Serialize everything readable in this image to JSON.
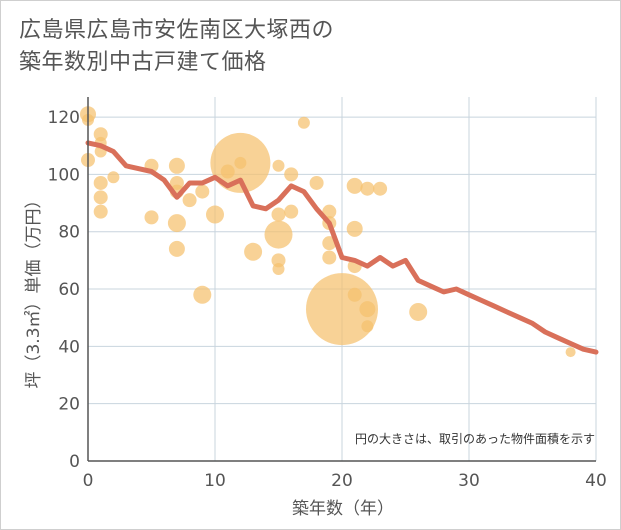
{
  "title_lines": [
    "広島県広島市安佐南区大塚西の",
    "築年数別中古戸建て価格"
  ],
  "chart_data": {
    "type": "scatter",
    "xlabel": "築年数（年）",
    "ylabel": "坪（3.3㎡）単価（万円）",
    "xlim": [
      0,
      40
    ],
    "ylim": [
      0,
      127
    ],
    "x_ticks": [
      "0",
      "10",
      "20",
      "30",
      "40"
    ],
    "y_ticks": [
      "0",
      "20",
      "40",
      "60",
      "80",
      "100",
      "120"
    ],
    "grid": true,
    "note": "円の大きさは、取引のあった物件面積を示す",
    "colors": {
      "bubble": "#f5c16e",
      "line": "#d9705a"
    },
    "points": [
      {
        "x": 0,
        "y": 121,
        "r": 8
      },
      {
        "x": 0,
        "y": 119,
        "r": 6
      },
      {
        "x": 0,
        "y": 105,
        "r": 7
      },
      {
        "x": 1,
        "y": 114,
        "r": 7
      },
      {
        "x": 1,
        "y": 111,
        "r": 6
      },
      {
        "x": 1,
        "y": 108,
        "r": 6
      },
      {
        "x": 1,
        "y": 97,
        "r": 7
      },
      {
        "x": 1,
        "y": 92,
        "r": 7
      },
      {
        "x": 1,
        "y": 87,
        "r": 7
      },
      {
        "x": 2,
        "y": 99,
        "r": 6
      },
      {
        "x": 5,
        "y": 103,
        "r": 7
      },
      {
        "x": 5,
        "y": 85,
        "r": 7
      },
      {
        "x": 7,
        "y": 103,
        "r": 8
      },
      {
        "x": 7,
        "y": 97,
        "r": 7
      },
      {
        "x": 7,
        "y": 94,
        "r": 7
      },
      {
        "x": 7,
        "y": 83,
        "r": 9
      },
      {
        "x": 7,
        "y": 74,
        "r": 8
      },
      {
        "x": 8,
        "y": 91,
        "r": 7
      },
      {
        "x": 9,
        "y": 94,
        "r": 7
      },
      {
        "x": 9,
        "y": 58,
        "r": 9
      },
      {
        "x": 10,
        "y": 86,
        "r": 9
      },
      {
        "x": 11,
        "y": 101,
        "r": 7
      },
      {
        "x": 12,
        "y": 104,
        "r": 30
      },
      {
        "x": 12,
        "y": 104,
        "r": 6
      },
      {
        "x": 13,
        "y": 73,
        "r": 9
      },
      {
        "x": 15,
        "y": 103,
        "r": 6
      },
      {
        "x": 15,
        "y": 86,
        "r": 7
      },
      {
        "x": 15,
        "y": 79,
        "r": 14
      },
      {
        "x": 15,
        "y": 70,
        "r": 7
      },
      {
        "x": 15,
        "y": 67,
        "r": 6
      },
      {
        "x": 16,
        "y": 100,
        "r": 7
      },
      {
        "x": 16,
        "y": 87,
        "r": 7
      },
      {
        "x": 17,
        "y": 118,
        "r": 6
      },
      {
        "x": 18,
        "y": 97,
        "r": 7
      },
      {
        "x": 19,
        "y": 87,
        "r": 7
      },
      {
        "x": 19,
        "y": 83,
        "r": 7
      },
      {
        "x": 19,
        "y": 76,
        "r": 7
      },
      {
        "x": 19,
        "y": 71,
        "r": 7
      },
      {
        "x": 20,
        "y": 53,
        "r": 36
      },
      {
        "x": 21,
        "y": 96,
        "r": 8
      },
      {
        "x": 21,
        "y": 81,
        "r": 8
      },
      {
        "x": 21,
        "y": 68,
        "r": 7
      },
      {
        "x": 21,
        "y": 58,
        "r": 7
      },
      {
        "x": 22,
        "y": 95,
        "r": 7
      },
      {
        "x": 22,
        "y": 53,
        "r": 8
      },
      {
        "x": 22,
        "y": 47,
        "r": 6
      },
      {
        "x": 23,
        "y": 95,
        "r": 7
      },
      {
        "x": 26,
        "y": 52,
        "r": 9
      },
      {
        "x": 38,
        "y": 38,
        "r": 5
      }
    ],
    "trend": {
      "x": [
        0,
        1,
        2,
        3,
        4,
        5,
        6,
        7,
        8,
        9,
        10,
        11,
        12,
        13,
        14,
        15,
        16,
        17,
        18,
        19,
        20,
        21,
        22,
        23,
        24,
        25,
        26,
        27,
        28,
        29,
        30,
        31,
        32,
        33,
        34,
        35,
        36,
        37,
        38,
        39,
        40
      ],
      "y": [
        111,
        110,
        108,
        103,
        102,
        101,
        98,
        92,
        97,
        97,
        99,
        96,
        98,
        89,
        88,
        91,
        96,
        94,
        88,
        83,
        71,
        70,
        68,
        71,
        68,
        70,
        63,
        61,
        59,
        60,
        58,
        56,
        54,
        52,
        50,
        48,
        45,
        43,
        41,
        39,
        38
      ]
    }
  }
}
